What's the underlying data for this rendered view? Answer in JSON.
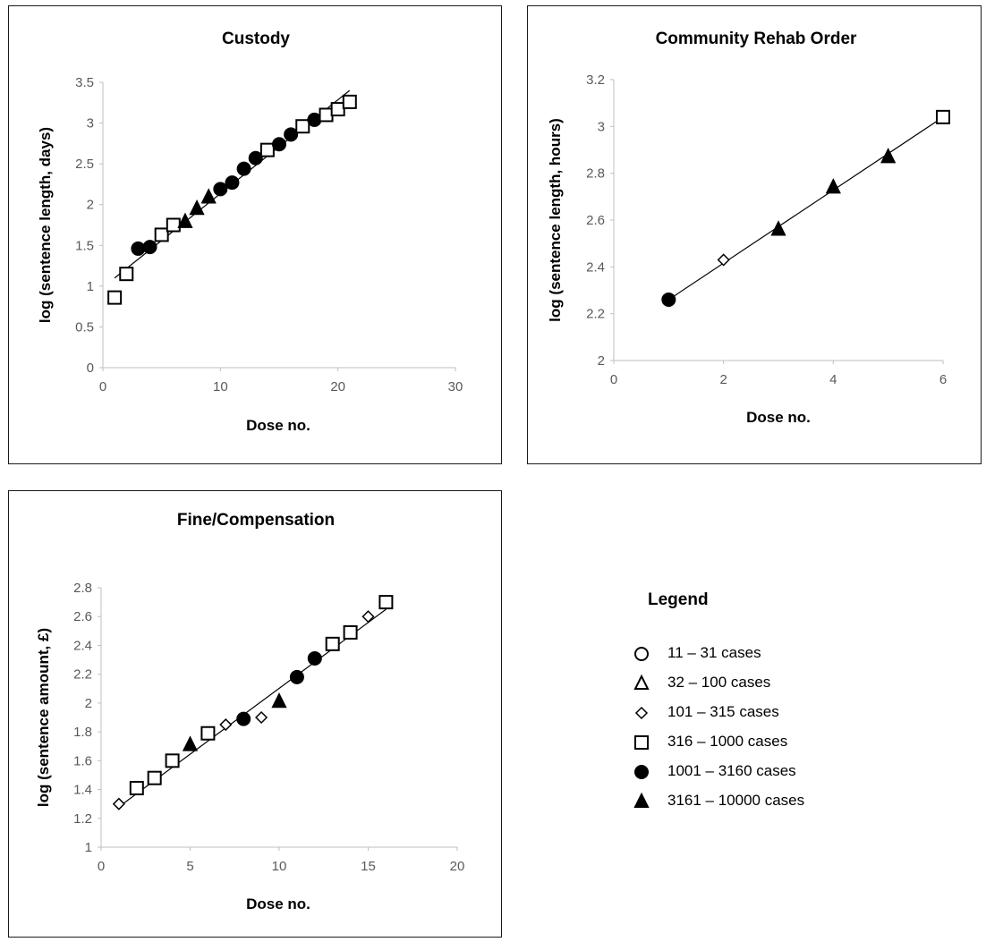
{
  "chart_data": [
    {
      "type": "scatter",
      "title": "Custody",
      "xlabel": "Dose no.",
      "ylabel": "log (sentence length, days)",
      "xlim": [
        0,
        30
      ],
      "ylim": [
        0,
        3.5
      ],
      "xticks": [
        "0",
        "10",
        "20",
        "30"
      ],
      "yticks": [
        "0",
        "0.5",
        "1",
        "1.5",
        "2",
        "2.5",
        "3",
        "3.5"
      ],
      "trendline": [
        [
          1,
          1.1
        ],
        [
          21,
          3.4
        ]
      ],
      "points": [
        {
          "x": 1,
          "y": 0.86,
          "marker": "square"
        },
        {
          "x": 2,
          "y": 1.15,
          "marker": "square"
        },
        {
          "x": 3,
          "y": 1.46,
          "marker": "circle"
        },
        {
          "x": 4,
          "y": 1.48,
          "marker": "circle"
        },
        {
          "x": 5,
          "y": 1.63,
          "marker": "square"
        },
        {
          "x": 6,
          "y": 1.75,
          "marker": "square"
        },
        {
          "x": 7,
          "y": 1.79,
          "marker": "triangle"
        },
        {
          "x": 8,
          "y": 1.95,
          "marker": "triangle"
        },
        {
          "x": 9,
          "y": 2.09,
          "marker": "triangle"
        },
        {
          "x": 10,
          "y": 2.19,
          "marker": "circle"
        },
        {
          "x": 11,
          "y": 2.27,
          "marker": "circle"
        },
        {
          "x": 12,
          "y": 2.44,
          "marker": "circle"
        },
        {
          "x": 13,
          "y": 2.57,
          "marker": "circle"
        },
        {
          "x": 14,
          "y": 2.67,
          "marker": "square"
        },
        {
          "x": 15,
          "y": 2.74,
          "marker": "circle"
        },
        {
          "x": 16,
          "y": 2.86,
          "marker": "circle"
        },
        {
          "x": 17,
          "y": 2.96,
          "marker": "square"
        },
        {
          "x": 18,
          "y": 3.04,
          "marker": "circle"
        },
        {
          "x": 19,
          "y": 3.1,
          "marker": "square"
        },
        {
          "x": 20,
          "y": 3.17,
          "marker": "square"
        },
        {
          "x": 21,
          "y": 3.26,
          "marker": "square"
        }
      ]
    },
    {
      "type": "scatter",
      "title": "Community Rehab Order",
      "xlabel": "Dose no.",
      "ylabel": "log (sentence length, hours)",
      "xlim": [
        0,
        6
      ],
      "ylim": [
        2,
        3.2
      ],
      "xticks": [
        "0",
        "2",
        "4",
        "6"
      ],
      "yticks": [
        "2",
        "2.2",
        "2.4",
        "2.6",
        "2.8",
        "3",
        "3.2"
      ],
      "trendline": [
        [
          1,
          2.26
        ],
        [
          6,
          3.04
        ]
      ],
      "points": [
        {
          "x": 1,
          "y": 2.26,
          "marker": "circle"
        },
        {
          "x": 2,
          "y": 2.43,
          "marker": "diamond"
        },
        {
          "x": 3,
          "y": 2.56,
          "marker": "triangle"
        },
        {
          "x": 4,
          "y": 2.74,
          "marker": "triangle"
        },
        {
          "x": 5,
          "y": 2.87,
          "marker": "triangle"
        },
        {
          "x": 6,
          "y": 3.04,
          "marker": "square"
        }
      ]
    },
    {
      "type": "scatter",
      "title": "Fine/Compensation",
      "xlabel": "Dose no.",
      "ylabel": "log (sentence amount, £)",
      "xlim": [
        0,
        20
      ],
      "ylim": [
        1,
        2.8
      ],
      "xticks": [
        "0",
        "5",
        "10",
        "15",
        "20"
      ],
      "yticks": [
        "1",
        "1.2",
        "1.4",
        "1.6",
        "1.8",
        "2",
        "2.2",
        "2.4",
        "2.6",
        "2.8"
      ],
      "trendline": [
        [
          1,
          1.28
        ],
        [
          16,
          2.65
        ]
      ],
      "points": [
        {
          "x": 1,
          "y": 1.3,
          "marker": "diamond"
        },
        {
          "x": 2,
          "y": 1.41,
          "marker": "square"
        },
        {
          "x": 3,
          "y": 1.48,
          "marker": "square"
        },
        {
          "x": 4,
          "y": 1.6,
          "marker": "square"
        },
        {
          "x": 5,
          "y": 1.71,
          "marker": "triangle"
        },
        {
          "x": 6,
          "y": 1.79,
          "marker": "square"
        },
        {
          "x": 7,
          "y": 1.85,
          "marker": "diamond"
        },
        {
          "x": 8,
          "y": 1.89,
          "marker": "circle"
        },
        {
          "x": 9,
          "y": 1.9,
          "marker": "diamond"
        },
        {
          "x": 10,
          "y": 2.01,
          "marker": "triangle"
        },
        {
          "x": 11,
          "y": 2.18,
          "marker": "circle"
        },
        {
          "x": 12,
          "y": 2.31,
          "marker": "circle"
        },
        {
          "x": 13,
          "y": 2.41,
          "marker": "square"
        },
        {
          "x": 14,
          "y": 2.49,
          "marker": "square"
        },
        {
          "x": 15,
          "y": 2.6,
          "marker": "diamond"
        },
        {
          "x": 16,
          "y": 2.7,
          "marker": "square"
        }
      ]
    }
  ],
  "legend": {
    "title": "Legend",
    "items": [
      {
        "label": "11 – 31 cases",
        "marker": "circle",
        "filled": false
      },
      {
        "label": "32 – 100 cases",
        "marker": "triangle",
        "filled": false
      },
      {
        "label": "101 – 315 cases",
        "marker": "diamond",
        "filled": false
      },
      {
        "label": "316 – 1000 cases",
        "marker": "square",
        "filled": false
      },
      {
        "label": "1001 – 3160 cases",
        "marker": "circle",
        "filled": true
      },
      {
        "label": "3161 – 10000 cases",
        "marker": "triangle",
        "filled": true
      }
    ]
  },
  "colors": {
    "marker": "#000000",
    "axis": "#bfbfbf",
    "tick_text": "#595959"
  }
}
